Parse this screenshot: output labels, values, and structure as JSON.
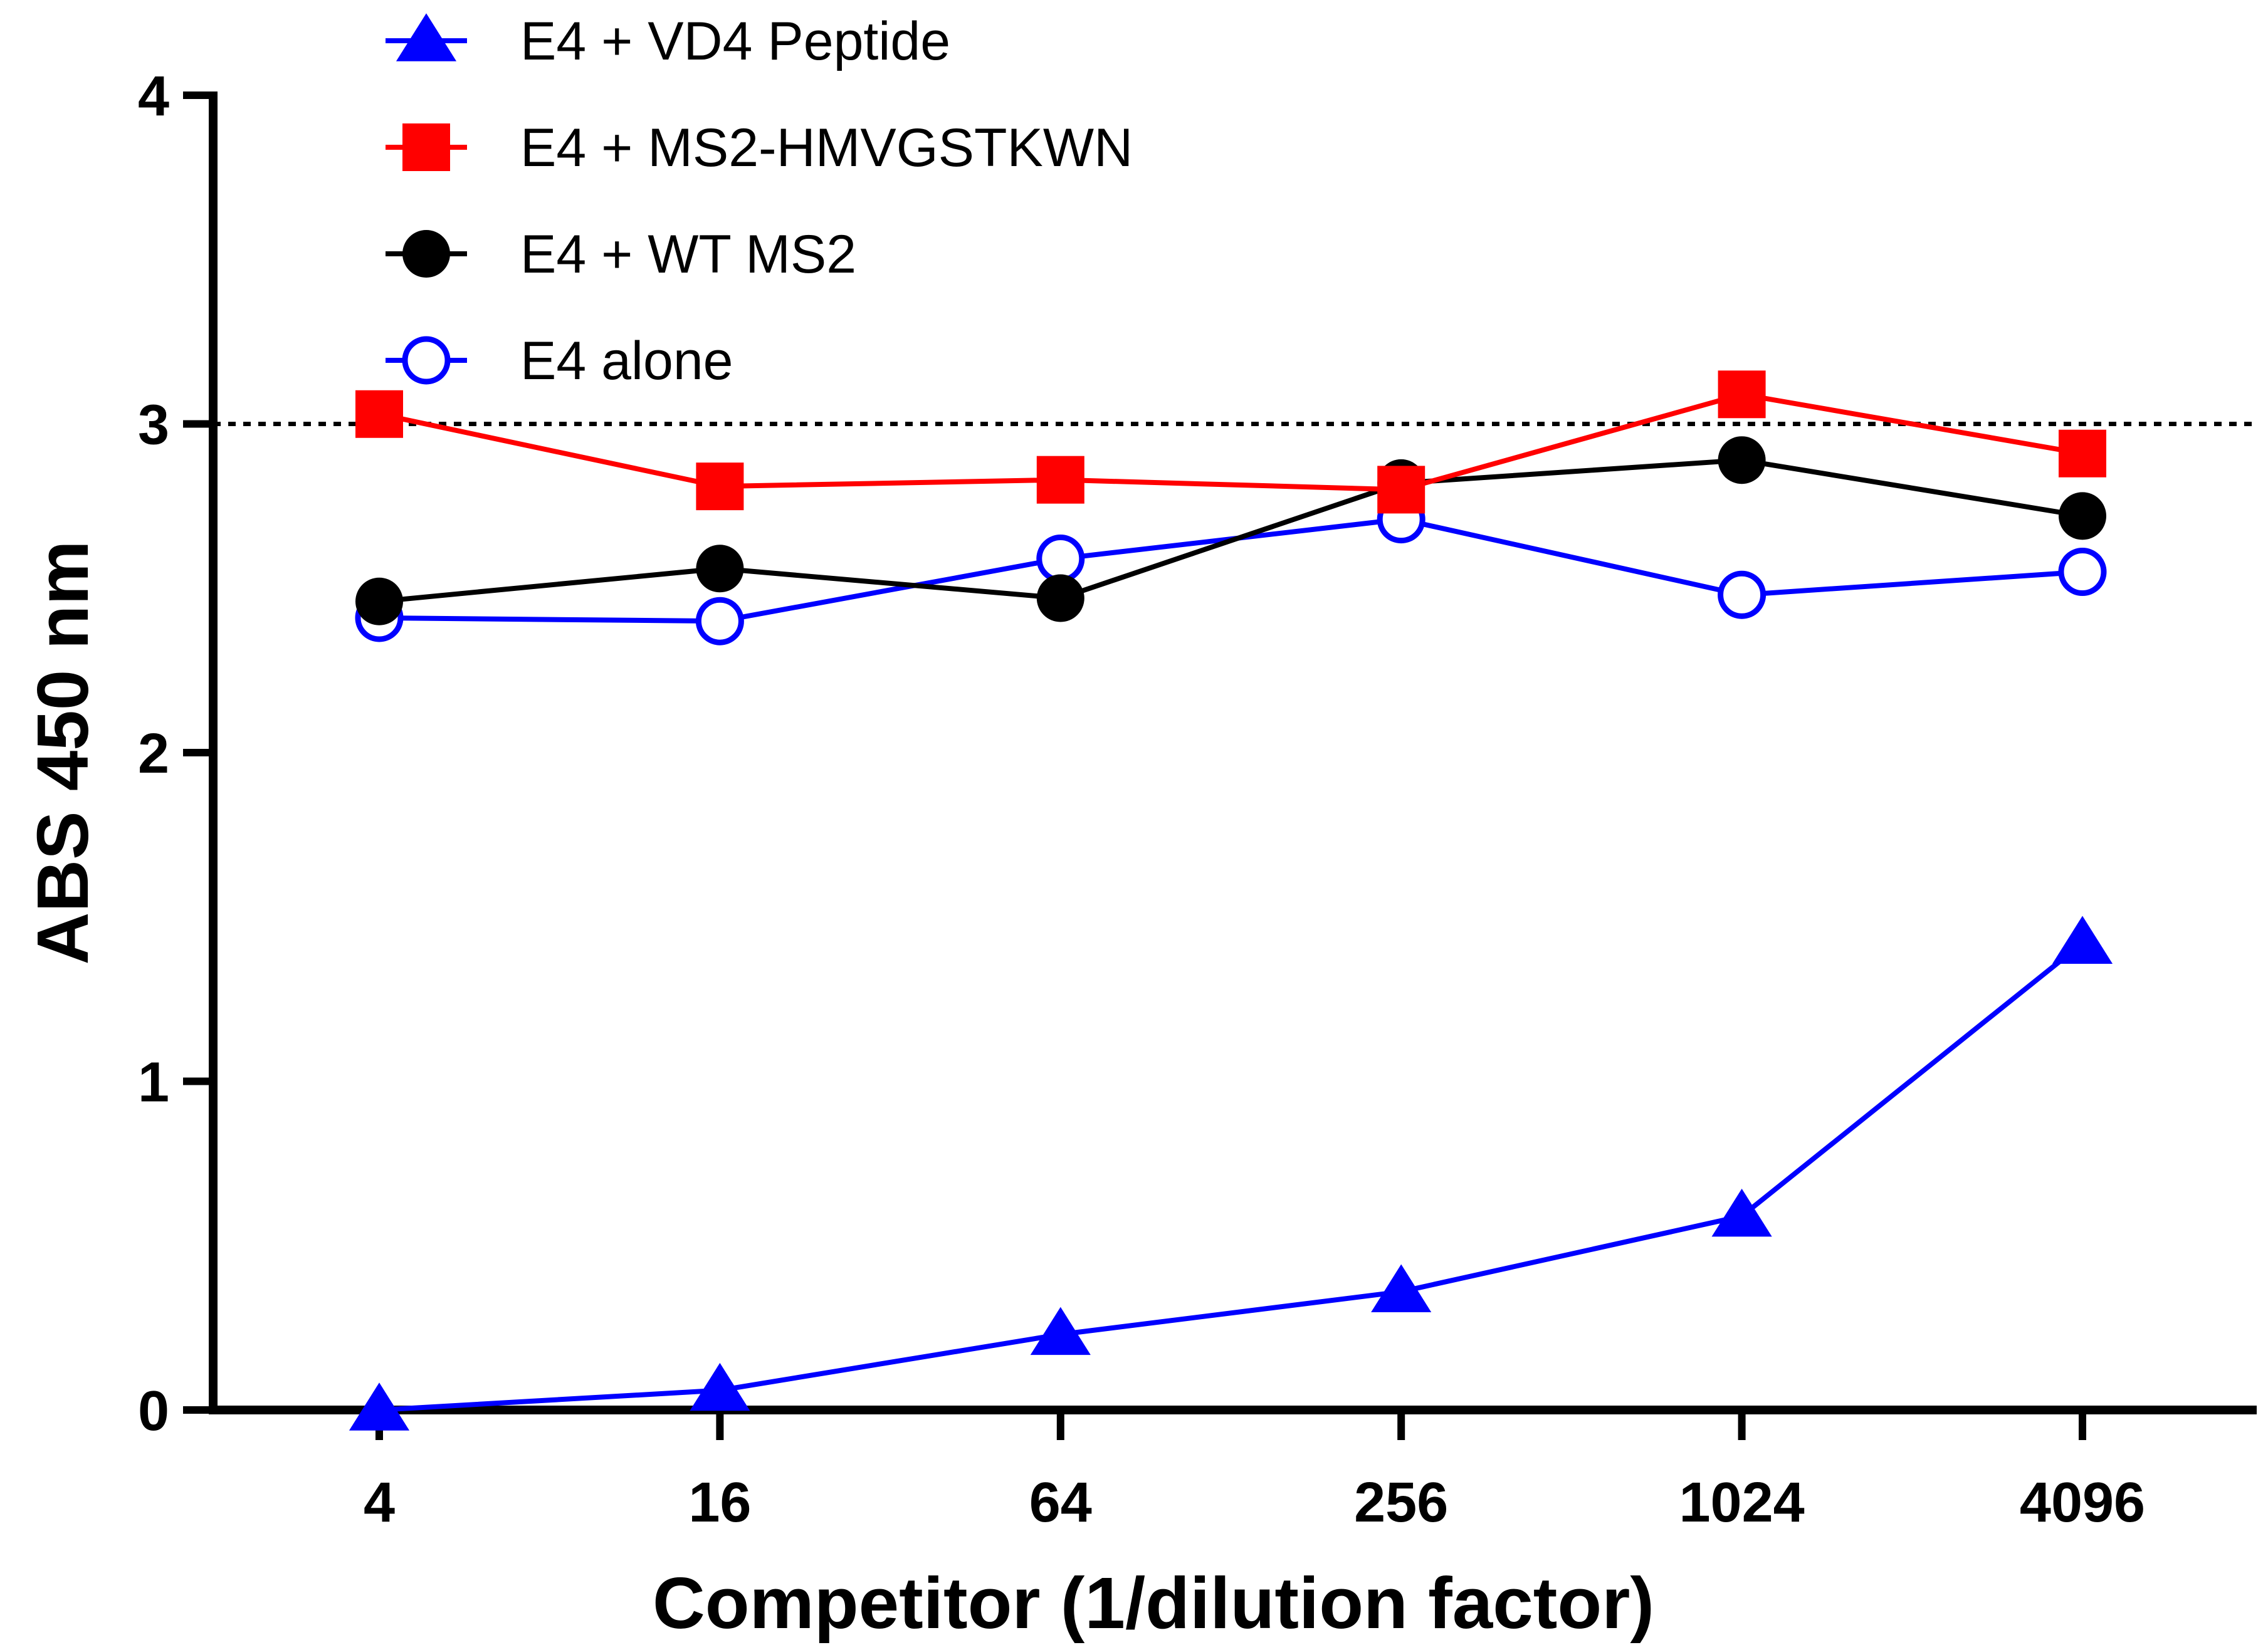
{
  "chart_data": {
    "type": "line",
    "title": "",
    "xlabel": "Competitor (1/dilution factor)",
    "ylabel": "ABS 450 nm",
    "categories": [
      "4",
      "16",
      "64",
      "256",
      "1024",
      "4096"
    ],
    "x_scale": "log",
    "ylim": [
      0,
      4
    ],
    "yticks": [
      "0",
      "1",
      "2",
      "3",
      "4"
    ],
    "grid": false,
    "legend_position": "top-center",
    "reference_line": {
      "y": 3,
      "style": "dotted",
      "color": "#000000"
    },
    "series": [
      {
        "name": "E4 + VD4 Peptide",
        "color": "#0000ff",
        "marker": "triangle",
        "filled": true,
        "values": [
          0.0,
          0.06,
          0.23,
          0.36,
          0.59,
          1.42
        ]
      },
      {
        "name": "E4 + MS2-HMVGSTKWN",
        "color": "#ff0000",
        "marker": "square",
        "filled": true,
        "values": [
          3.03,
          2.81,
          2.83,
          2.8,
          3.09,
          2.91
        ]
      },
      {
        "name": "E4 + WT MS2",
        "color": "#000000",
        "marker": "circle",
        "filled": true,
        "values": [
          2.46,
          2.56,
          2.47,
          2.82,
          2.89,
          2.72
        ]
      },
      {
        "name": "E4 alone",
        "color": "#0000ff",
        "marker": "circle",
        "filled": false,
        "values": [
          2.41,
          2.4,
          2.59,
          2.71,
          2.48,
          2.55
        ]
      }
    ]
  }
}
